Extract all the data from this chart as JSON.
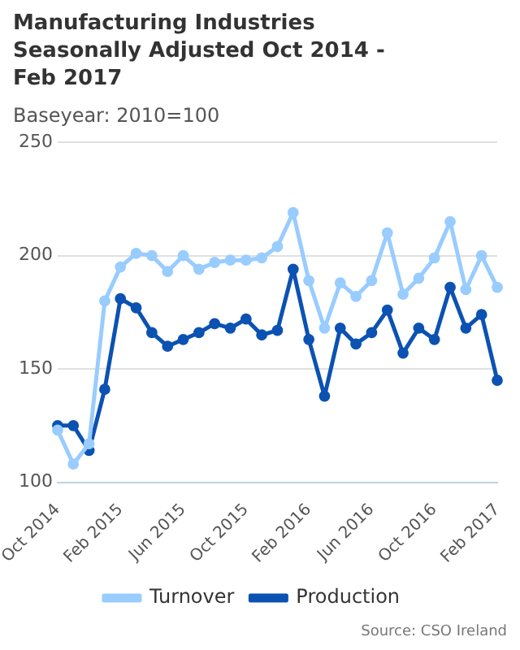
{
  "chart_data": {
    "type": "line",
    "title": "Manufacturing Industries Seasonally Adjusted Oct 2014 - Feb 2017",
    "subtitle": "Baseyear: 2010=100",
    "categories": [
      "Oct 2014",
      null,
      null,
      null,
      "Feb 2015",
      null,
      null,
      null,
      "Jun 2015",
      null,
      null,
      null,
      "Oct 2015",
      null,
      null,
      null,
      "Feb 2016",
      null,
      null,
      null,
      "Jun 2016",
      null,
      null,
      null,
      "Oct 2016",
      null,
      null,
      null,
      "Feb 2017"
    ],
    "series": [
      {
        "name": "Production",
        "color": "#0b52b2",
        "values": [
          125,
          125,
          114,
          141,
          181,
          177,
          166,
          160,
          163,
          166,
          170,
          168,
          172,
          165,
          167,
          194,
          163,
          138,
          168,
          161,
          166,
          176,
          157,
          168,
          163,
          186,
          168,
          174,
          145
        ]
      },
      {
        "name": "Turnover",
        "color": "#99ccff",
        "values": [
          123,
          108,
          117,
          180,
          195,
          201,
          200,
          193,
          200,
          194,
          197,
          198,
          198,
          199,
          204,
          219,
          189,
          168,
          188,
          182,
          189,
          210,
          183,
          190,
          199,
          215,
          185,
          200,
          186
        ]
      }
    ],
    "ylim": [
      100,
      250
    ],
    "yticks": [
      100,
      150,
      200,
      250
    ],
    "grid": "y",
    "legend": "bottom",
    "marker": "circle",
    "line_style": "solid",
    "annotations": [
      "Source: CSO Ireland"
    ]
  }
}
